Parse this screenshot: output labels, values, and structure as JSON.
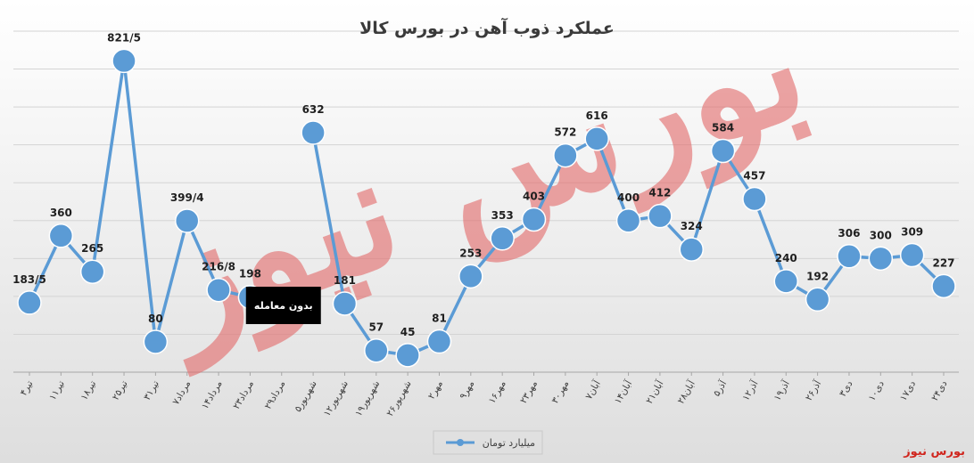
{
  "chart_data": {
    "type": "line",
    "title": "عملکرد ذوب آهن در بورس کالا",
    "x": [
      "۴تیر",
      "۱۱تیر",
      "۱۸تیر",
      "۲۵تیر",
      "۳۱تیر",
      "۷مرداد",
      "۱۴مرداد",
      "۲۳مرداد",
      "۲۹مرداد",
      "۵شهریور",
      "۱۲شهریور",
      "۱۹شهریور",
      "۲۶شهریور",
      "۲مهر",
      "۹مهر",
      "۱۶مهر",
      "۲۳مهر",
      "۳۰مهر",
      "۷آبان",
      "۱۴آبان",
      "۲۱آبان",
      "۲۸آبان",
      "۵آذر",
      "۱۲آذر",
      "۱۹آذر",
      "۲۶آذر",
      "۳دی",
      "۱۰دی",
      "۱۷دی",
      "۲۴دی"
    ],
    "series": [
      {
        "name": "میلیارد تومان",
        "values": [
          183.5,
          360,
          265,
          821.5,
          80,
          399.4,
          216.8,
          198,
          null,
          632,
          181,
          57,
          45,
          81,
          253,
          353,
          403,
          572,
          616,
          400,
          412,
          324,
          584,
          457,
          240,
          192,
          306,
          300,
          309,
          227
        ],
        "labels": [
          "183/5",
          "360",
          "265",
          "821/5",
          "80",
          "399/4",
          "216/8",
          "198",
          "",
          "632",
          "181",
          "57",
          "45",
          "81",
          "253",
          "353",
          "403",
          "572",
          "616",
          "400",
          "412",
          "324",
          "584",
          "457",
          "240",
          "192",
          "306",
          "300",
          "309",
          "227"
        ]
      }
    ],
    "annotations": [
      {
        "text": "بدون معامله",
        "x_index": 8
      }
    ],
    "ylim": [
      0,
      900
    ],
    "grid": true,
    "legend": "bottom-center",
    "line_color": "#5b9bd5",
    "annotation_bg": "#000000"
  },
  "watermark": {
    "text": "بورس نیوز",
    "color": "#e36d6d"
  },
  "source": {
    "text": "بورس نیوز",
    "color": "#d0261e"
  }
}
